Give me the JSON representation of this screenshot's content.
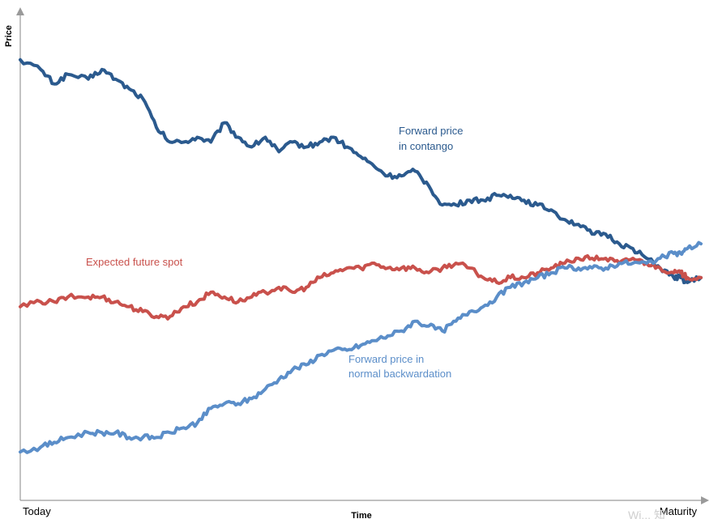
{
  "chart_data": {
    "type": "line",
    "title": "",
    "xlabel": "Time",
    "ylabel": "Price",
    "x_tick_labels": [
      "Today",
      "Maturity"
    ],
    "xlim": [
      0,
      100
    ],
    "ylim": [
      0,
      100
    ],
    "grid": false,
    "legend": "none",
    "series": [
      {
        "name": "Forward price in contango",
        "color": "#2b5a8e",
        "x": [
          0,
          3,
          5,
          7,
          10,
          12,
          14,
          16,
          18,
          20,
          22,
          24,
          26,
          28,
          30,
          32,
          34,
          36,
          38,
          40,
          42,
          44,
          46,
          48,
          50,
          52,
          54,
          56,
          58,
          60,
          62,
          64,
          66,
          68,
          70,
          72,
          74,
          76,
          78,
          80,
          82,
          84,
          86,
          88,
          90,
          92,
          94,
          96,
          97,
          98,
          100
        ],
        "y": [
          91,
          89,
          86,
          88,
          87,
          89,
          87,
          85,
          83,
          77,
          74,
          74,
          75,
          74,
          78,
          75,
          73,
          75,
          72,
          74,
          73,
          74,
          75,
          73,
          71,
          69,
          67,
          67,
          68,
          65,
          61,
          61,
          62,
          62,
          63,
          63,
          62,
          61,
          60,
          58,
          57,
          55,
          55,
          53,
          52,
          50,
          48,
          46,
          46,
          45,
          46
        ],
        "labels": [
          "Forward price",
          "in contango"
        ]
      },
      {
        "name": "Expected future spot",
        "color": "#c9514c",
        "x": [
          0,
          3,
          5,
          7,
          10,
          12,
          14,
          16,
          18,
          20,
          22,
          24,
          26,
          28,
          30,
          32,
          34,
          36,
          38,
          40,
          42,
          44,
          46,
          48,
          50,
          52,
          54,
          56,
          58,
          60,
          62,
          64,
          66,
          68,
          70,
          72,
          74,
          76,
          78,
          80,
          82,
          84,
          86,
          88,
          90,
          92,
          94,
          96,
          97,
          98,
          100
        ],
        "y": [
          40,
          41,
          41,
          42,
          42,
          42,
          41,
          40,
          39,
          38,
          38,
          40,
          41,
          43,
          42,
          41,
          42,
          43,
          44,
          43,
          44,
          46,
          47,
          48,
          48,
          49,
          48,
          48,
          48,
          47,
          48,
          49,
          48,
          46,
          45,
          46,
          46,
          47,
          48,
          49,
          50,
          50,
          50,
          49,
          50,
          49,
          48,
          47,
          47,
          46,
          46
        ],
        "labels": [
          "Expected future spot"
        ]
      },
      {
        "name": "Forward price in normal backwardation",
        "color": "#5b8ec9",
        "x": [
          0,
          3,
          5,
          7,
          10,
          12,
          14,
          16,
          18,
          20,
          22,
          24,
          26,
          28,
          30,
          32,
          34,
          36,
          38,
          40,
          42,
          44,
          46,
          48,
          50,
          52,
          54,
          56,
          58,
          60,
          62,
          64,
          66,
          68,
          70,
          72,
          74,
          76,
          78,
          80,
          82,
          84,
          86,
          88,
          90,
          92,
          94,
          96,
          97,
          98,
          100
        ],
        "y": [
          10,
          11,
          12,
          13,
          14,
          14,
          14,
          13,
          13,
          13,
          14,
          15,
          16,
          19,
          20,
          20,
          21,
          23,
          25,
          27,
          28,
          30,
          31,
          31,
          32,
          33,
          34,
          35,
          37,
          36,
          35,
          37,
          39,
          40,
          42,
          44,
          45,
          46,
          47,
          48,
          48,
          48,
          48,
          49,
          49,
          49,
          50,
          51,
          51,
          52,
          53
        ],
        "labels": [
          "Forward price in",
          "normal backwardation"
        ]
      }
    ]
  },
  "watermark": "Wi... 知"
}
